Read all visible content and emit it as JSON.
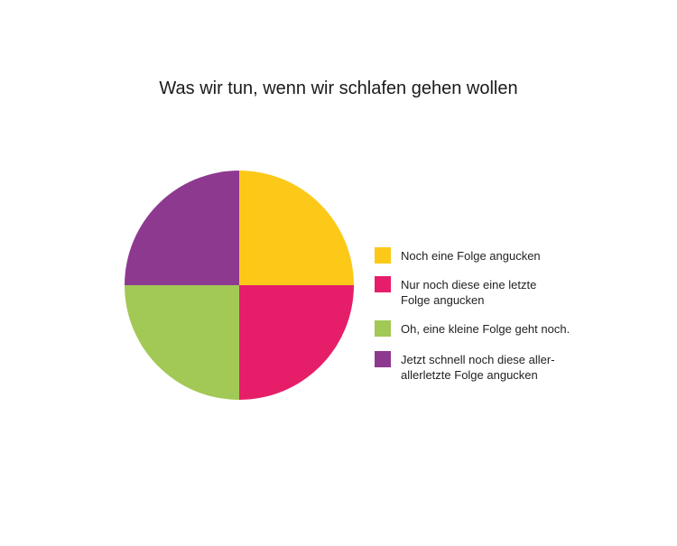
{
  "chart_data": {
    "type": "pie",
    "title": "Was wir tun, wenn wir schlafen gehen wollen",
    "categories": [
      "Noch eine Folge angucken",
      "Nur noch diese eine letzte Folge angucken",
      "Oh, eine kleine Folge geht noch.",
      "Jetzt schnell noch diese aller-allerletzte Folge angucken"
    ],
    "values": [
      25,
      25,
      25,
      25
    ],
    "colors": [
      "#fcc918",
      "#e61e69",
      "#a2c855",
      "#8e3990"
    ],
    "legend": "right"
  }
}
